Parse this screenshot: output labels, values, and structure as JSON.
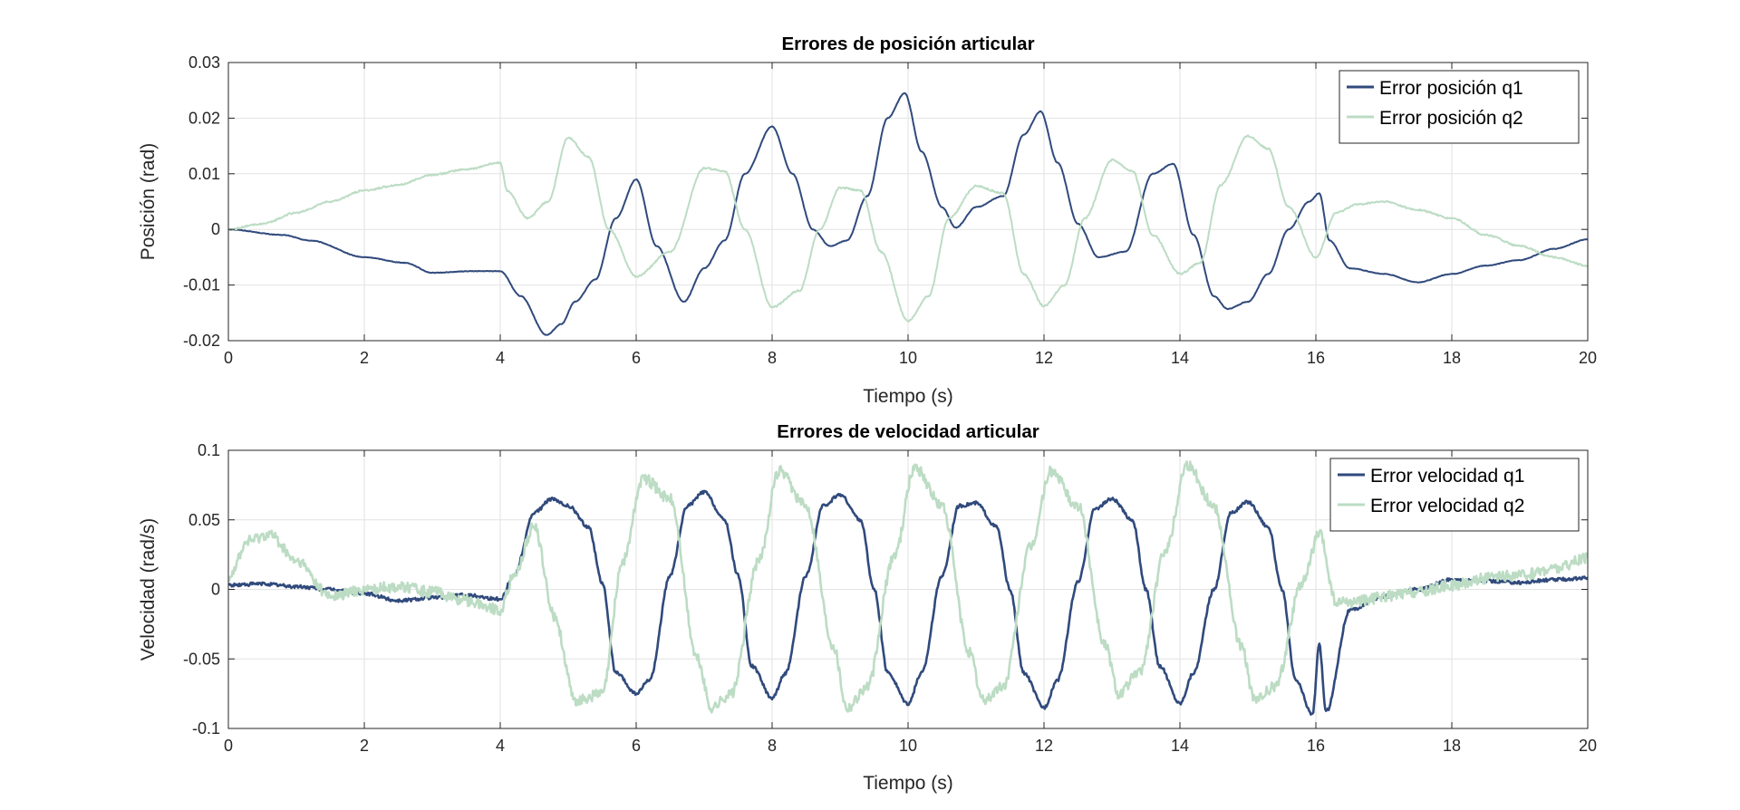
{
  "chart_data": [
    {
      "type": "line",
      "title": "Errores de posición articular",
      "xlabel": "Tiempo (s)",
      "ylabel": "Posición (rad)",
      "xlim": [
        0,
        20
      ],
      "ylim": [
        -0.02,
        0.03
      ],
      "xticks": [
        0,
        2,
        4,
        6,
        8,
        10,
        12,
        14,
        16,
        18,
        20
      ],
      "xtick_labels": [
        "0",
        "2",
        "4",
        "6",
        "8",
        "10",
        "12",
        "14",
        "16",
        "18",
        "20"
      ],
      "yticks": [
        -0.02,
        -0.01,
        0,
        0.01,
        0.02,
        0.03
      ],
      "ytick_labels": [
        "-0.02",
        "-0.01",
        "0",
        "0.01",
        "0.02",
        "0.03"
      ],
      "grid": true,
      "legend_position": "top-right",
      "series": [
        {
          "name": "Error posición q1",
          "color": "#304a7c",
          "x": [
            0,
            0.8,
            1.2,
            2.0,
            2.6,
            3.0,
            3.6,
            4.0,
            4.3,
            4.68,
            4.9,
            5.1,
            5.4,
            5.7,
            6.0,
            6.3,
            6.7,
            7.0,
            7.3,
            7.6,
            8.0,
            8.3,
            8.6,
            8.85,
            9.1,
            9.4,
            9.7,
            9.95,
            10.2,
            10.5,
            10.7,
            11.0,
            11.4,
            11.7,
            11.95,
            12.2,
            12.5,
            12.8,
            13.2,
            13.6,
            13.9,
            14.2,
            14.5,
            14.7,
            15.0,
            15.3,
            15.6,
            15.9,
            16.05,
            16.2,
            16.5,
            17.0,
            17.5,
            18.0,
            18.5,
            19.0,
            19.5,
            20.0
          ],
          "y": [
            0,
            -0.001,
            -0.002,
            -0.005,
            -0.006,
            -0.0078,
            -0.0075,
            -0.0075,
            -0.012,
            -0.019,
            -0.017,
            -0.013,
            -0.009,
            0.002,
            0.009,
            -0.003,
            -0.013,
            -0.007,
            -0.002,
            0.01,
            0.0185,
            0.01,
            0.0,
            -0.003,
            -0.002,
            0.006,
            0.02,
            0.0245,
            0.014,
            0.004,
            0.0003,
            0.004,
            0.006,
            0.017,
            0.0212,
            0.012,
            0.001,
            -0.005,
            -0.004,
            0.01,
            0.0118,
            -0.001,
            -0.012,
            -0.0143,
            -0.013,
            -0.008,
            0.0,
            0.005,
            0.0065,
            -0.002,
            -0.007,
            -0.008,
            -0.0095,
            -0.008,
            -0.0065,
            -0.0055,
            -0.0035,
            -0.0018
          ]
        },
        {
          "name": "Error posición q2",
          "color": "#bcdcc4",
          "x": [
            0,
            0.5,
            1.0,
            1.5,
            2.0,
            2.5,
            3.0,
            3.5,
            4.0,
            4.1,
            4.4,
            4.7,
            5.0,
            5.3,
            5.6,
            6.0,
            6.5,
            7.0,
            7.3,
            7.6,
            8.0,
            8.4,
            8.7,
            9.0,
            9.3,
            9.6,
            10.0,
            10.3,
            10.6,
            11.0,
            11.4,
            11.7,
            12.0,
            12.3,
            12.6,
            13.0,
            13.3,
            13.6,
            14.0,
            14.3,
            14.6,
            15.0,
            15.3,
            15.6,
            16.0,
            16.3,
            16.6,
            17.0,
            17.5,
            18.0,
            18.5,
            19.0,
            19.5,
            20.0
          ],
          "y": [
            0,
            0.001,
            0.003,
            0.005,
            0.007,
            0.008,
            0.0098,
            0.0108,
            0.012,
            0.007,
            0.002,
            0.005,
            0.0165,
            0.013,
            0.0,
            -0.0085,
            -0.004,
            0.011,
            0.0105,
            0.0,
            -0.014,
            -0.011,
            0.0,
            0.0075,
            0.007,
            -0.004,
            -0.0165,
            -0.012,
            0.002,
            0.0078,
            0.0065,
            -0.008,
            -0.0138,
            -0.01,
            0.002,
            0.0125,
            0.0105,
            -0.001,
            -0.008,
            -0.006,
            0.008,
            0.0168,
            0.0145,
            0.004,
            -0.005,
            0.003,
            0.0045,
            0.005,
            0.0035,
            0.002,
            -0.001,
            -0.003,
            -0.005,
            -0.0065
          ]
        }
      ]
    },
    {
      "type": "line",
      "title": "Errores de velocidad articular",
      "xlabel": "Tiempo (s)",
      "ylabel": "Velocidad (rad/s)",
      "xlim": [
        0,
        20
      ],
      "ylim": [
        -0.1,
        0.1
      ],
      "xticks": [
        0,
        2,
        4,
        6,
        8,
        10,
        12,
        14,
        16,
        18,
        20
      ],
      "xtick_labels": [
        "0",
        "2",
        "4",
        "6",
        "8",
        "10",
        "12",
        "14",
        "16",
        "18",
        "20"
      ],
      "yticks": [
        -0.1,
        -0.05,
        0,
        0.05,
        0.1
      ],
      "ytick_labels": [
        "-0.1",
        "-0.05",
        "0",
        "0.05",
        "0.1"
      ],
      "grid": true,
      "legend_position": "top-right",
      "series": [
        {
          "name": "Error velocidad q1",
          "color": "#304a7c",
          "x": [
            0,
            0.5,
            1.0,
            1.5,
            2.0,
            2.5,
            3.0,
            3.5,
            4.0,
            4.2,
            4.5,
            4.75,
            5.0,
            5.3,
            5.5,
            5.7,
            6.0,
            6.2,
            6.5,
            6.75,
            7.0,
            7.3,
            7.5,
            7.7,
            8.0,
            8.2,
            8.5,
            8.75,
            9.0,
            9.3,
            9.5,
            9.7,
            10.0,
            10.2,
            10.5,
            10.75,
            11.0,
            11.3,
            11.5,
            11.7,
            12.0,
            12.2,
            12.5,
            12.75,
            13.0,
            13.3,
            13.5,
            13.7,
            14.0,
            14.2,
            14.5,
            14.75,
            15.0,
            15.3,
            15.5,
            15.7,
            15.95,
            16.05,
            16.15,
            16.5,
            17.0,
            17.5,
            18.0,
            18.5,
            19.0,
            19.5,
            20.0
          ],
          "y": [
            0.003,
            0.004,
            0.002,
            0.0,
            -0.003,
            -0.008,
            -0.006,
            -0.004,
            -0.007,
            0.01,
            0.055,
            0.065,
            0.06,
            0.045,
            0.005,
            -0.06,
            -0.075,
            -0.065,
            0.01,
            0.06,
            0.07,
            0.05,
            0.01,
            -0.055,
            -0.078,
            -0.06,
            0.01,
            0.06,
            0.068,
            0.05,
            0.0,
            -0.06,
            -0.082,
            -0.06,
            0.01,
            0.06,
            0.062,
            0.045,
            0.0,
            -0.06,
            -0.085,
            -0.065,
            0.005,
            0.058,
            0.065,
            0.05,
            0.0,
            -0.055,
            -0.082,
            -0.06,
            0.0,
            0.055,
            0.063,
            0.045,
            0.0,
            -0.065,
            -0.09,
            -0.04,
            -0.088,
            -0.015,
            -0.005,
            0.0,
            0.007,
            0.006,
            0.005,
            0.007,
            0.008
          ]
        },
        {
          "name": "Error velocidad q2",
          "color": "#bcdcc4",
          "x": [
            0,
            0.3,
            0.6,
            1.0,
            1.5,
            2.0,
            2.5,
            3.0,
            3.5,
            4.0,
            4.2,
            4.5,
            4.8,
            5.1,
            5.5,
            5.8,
            6.1,
            6.5,
            6.9,
            7.1,
            7.4,
            7.8,
            8.1,
            8.5,
            8.9,
            9.1,
            9.4,
            9.8,
            10.1,
            10.5,
            10.9,
            11.1,
            11.4,
            11.8,
            12.1,
            12.5,
            12.9,
            13.1,
            13.4,
            13.8,
            14.1,
            14.5,
            14.9,
            15.1,
            15.4,
            15.8,
            16.05,
            16.3,
            16.7,
            17.0,
            17.5,
            18.0,
            18.5,
            19.0,
            19.5,
            20.0
          ],
          "y": [
            0.01,
            0.035,
            0.04,
            0.02,
            -0.005,
            0.0,
            0.002,
            -0.002,
            -0.008,
            -0.015,
            0.01,
            0.045,
            -0.02,
            -0.08,
            -0.075,
            0.02,
            0.08,
            0.065,
            -0.05,
            -0.085,
            -0.075,
            0.02,
            0.085,
            0.06,
            -0.04,
            -0.085,
            -0.07,
            0.025,
            0.088,
            0.06,
            -0.045,
            -0.08,
            -0.07,
            0.03,
            0.085,
            0.06,
            -0.04,
            -0.075,
            -0.06,
            0.03,
            0.09,
            0.06,
            -0.04,
            -0.08,
            -0.07,
            0.005,
            0.04,
            -0.01,
            -0.008,
            -0.005,
            -0.002,
            0.003,
            0.008,
            0.01,
            0.015,
            0.022
          ]
        }
      ]
    }
  ]
}
